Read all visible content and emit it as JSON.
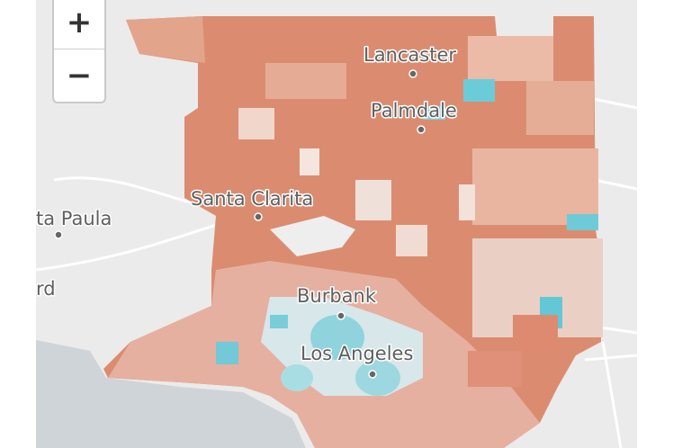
{
  "zoom_controls": {
    "zoom_in": "+",
    "zoom_out": "−"
  },
  "places": [
    "Lancaster",
    "Palmdale",
    "Santa Clarita",
    "ta Paula",
    "rd",
    "Burbank",
    "Los Angeles"
  ]
}
